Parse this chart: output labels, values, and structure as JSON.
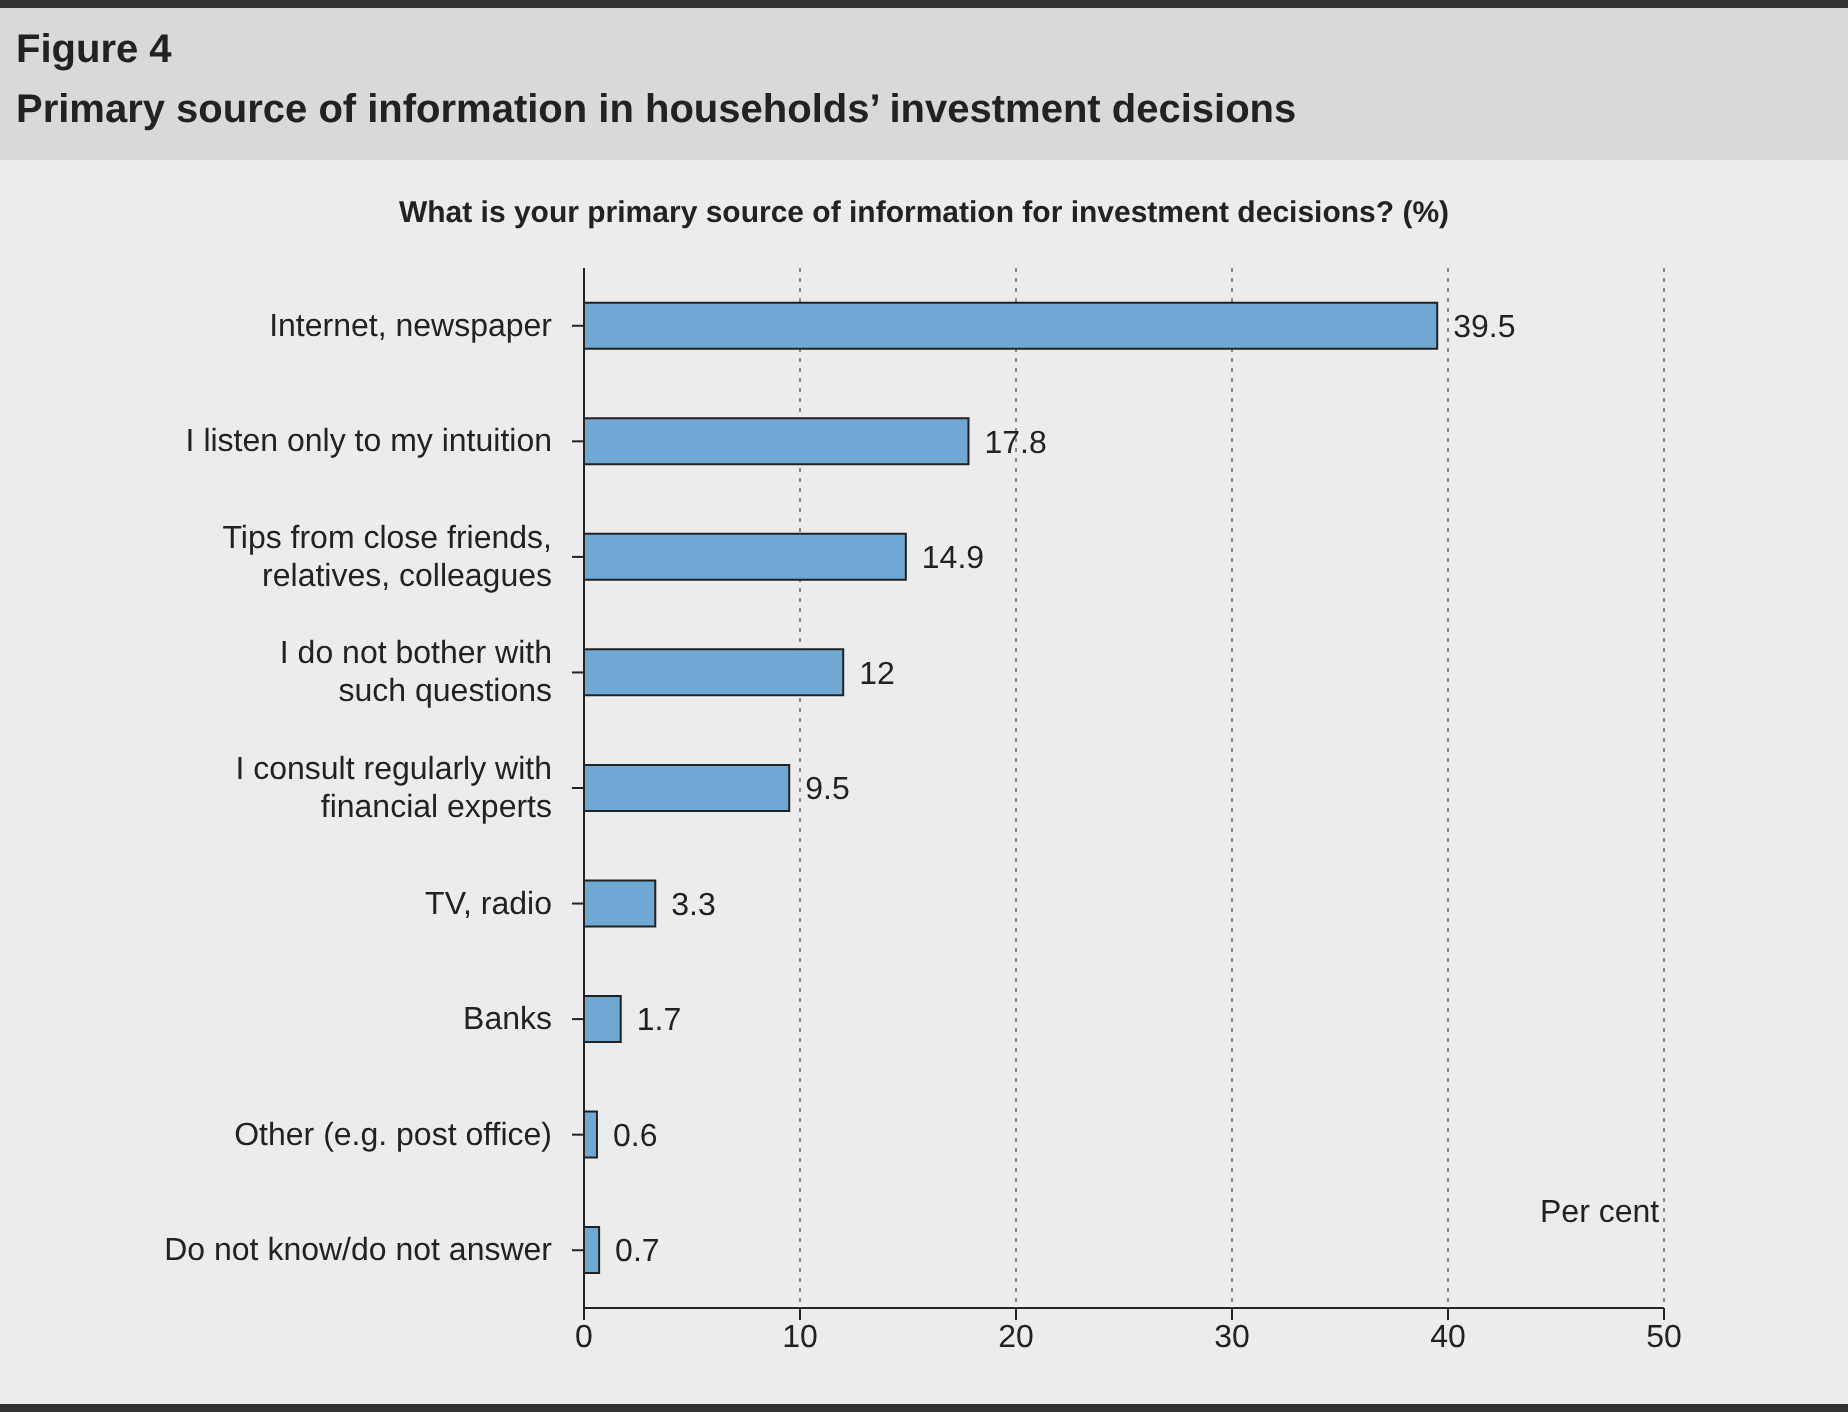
{
  "chart_data": {
    "type": "bar",
    "orientation": "horizontal",
    "title": "Figure 4",
    "subtitle": "Primary source of information in households’ investment decisions",
    "annotations": [
      "What is your primary source of information for investment decisions? (%)"
    ],
    "xlabel": "Per cent",
    "categories": [
      "Internet, newspaper",
      "I listen only to my intuition",
      "Tips from close friends, relatives, colleagues",
      "I do not bother with such questions",
      "I consult regularly with financial experts",
      "TV, radio",
      "Banks",
      "Other (e.g. post office)",
      "Do not know/do not answer"
    ],
    "values": [
      39.5,
      17.8,
      14.9,
      12,
      9.5,
      3.3,
      1.7,
      0.6,
      0.7
    ],
    "color": "#6fa8d2",
    "data_labels": true,
    "xlim": [
      0,
      50
    ],
    "xticks": [
      0,
      10,
      20,
      30,
      40,
      50
    ],
    "grid": "x"
  }
}
